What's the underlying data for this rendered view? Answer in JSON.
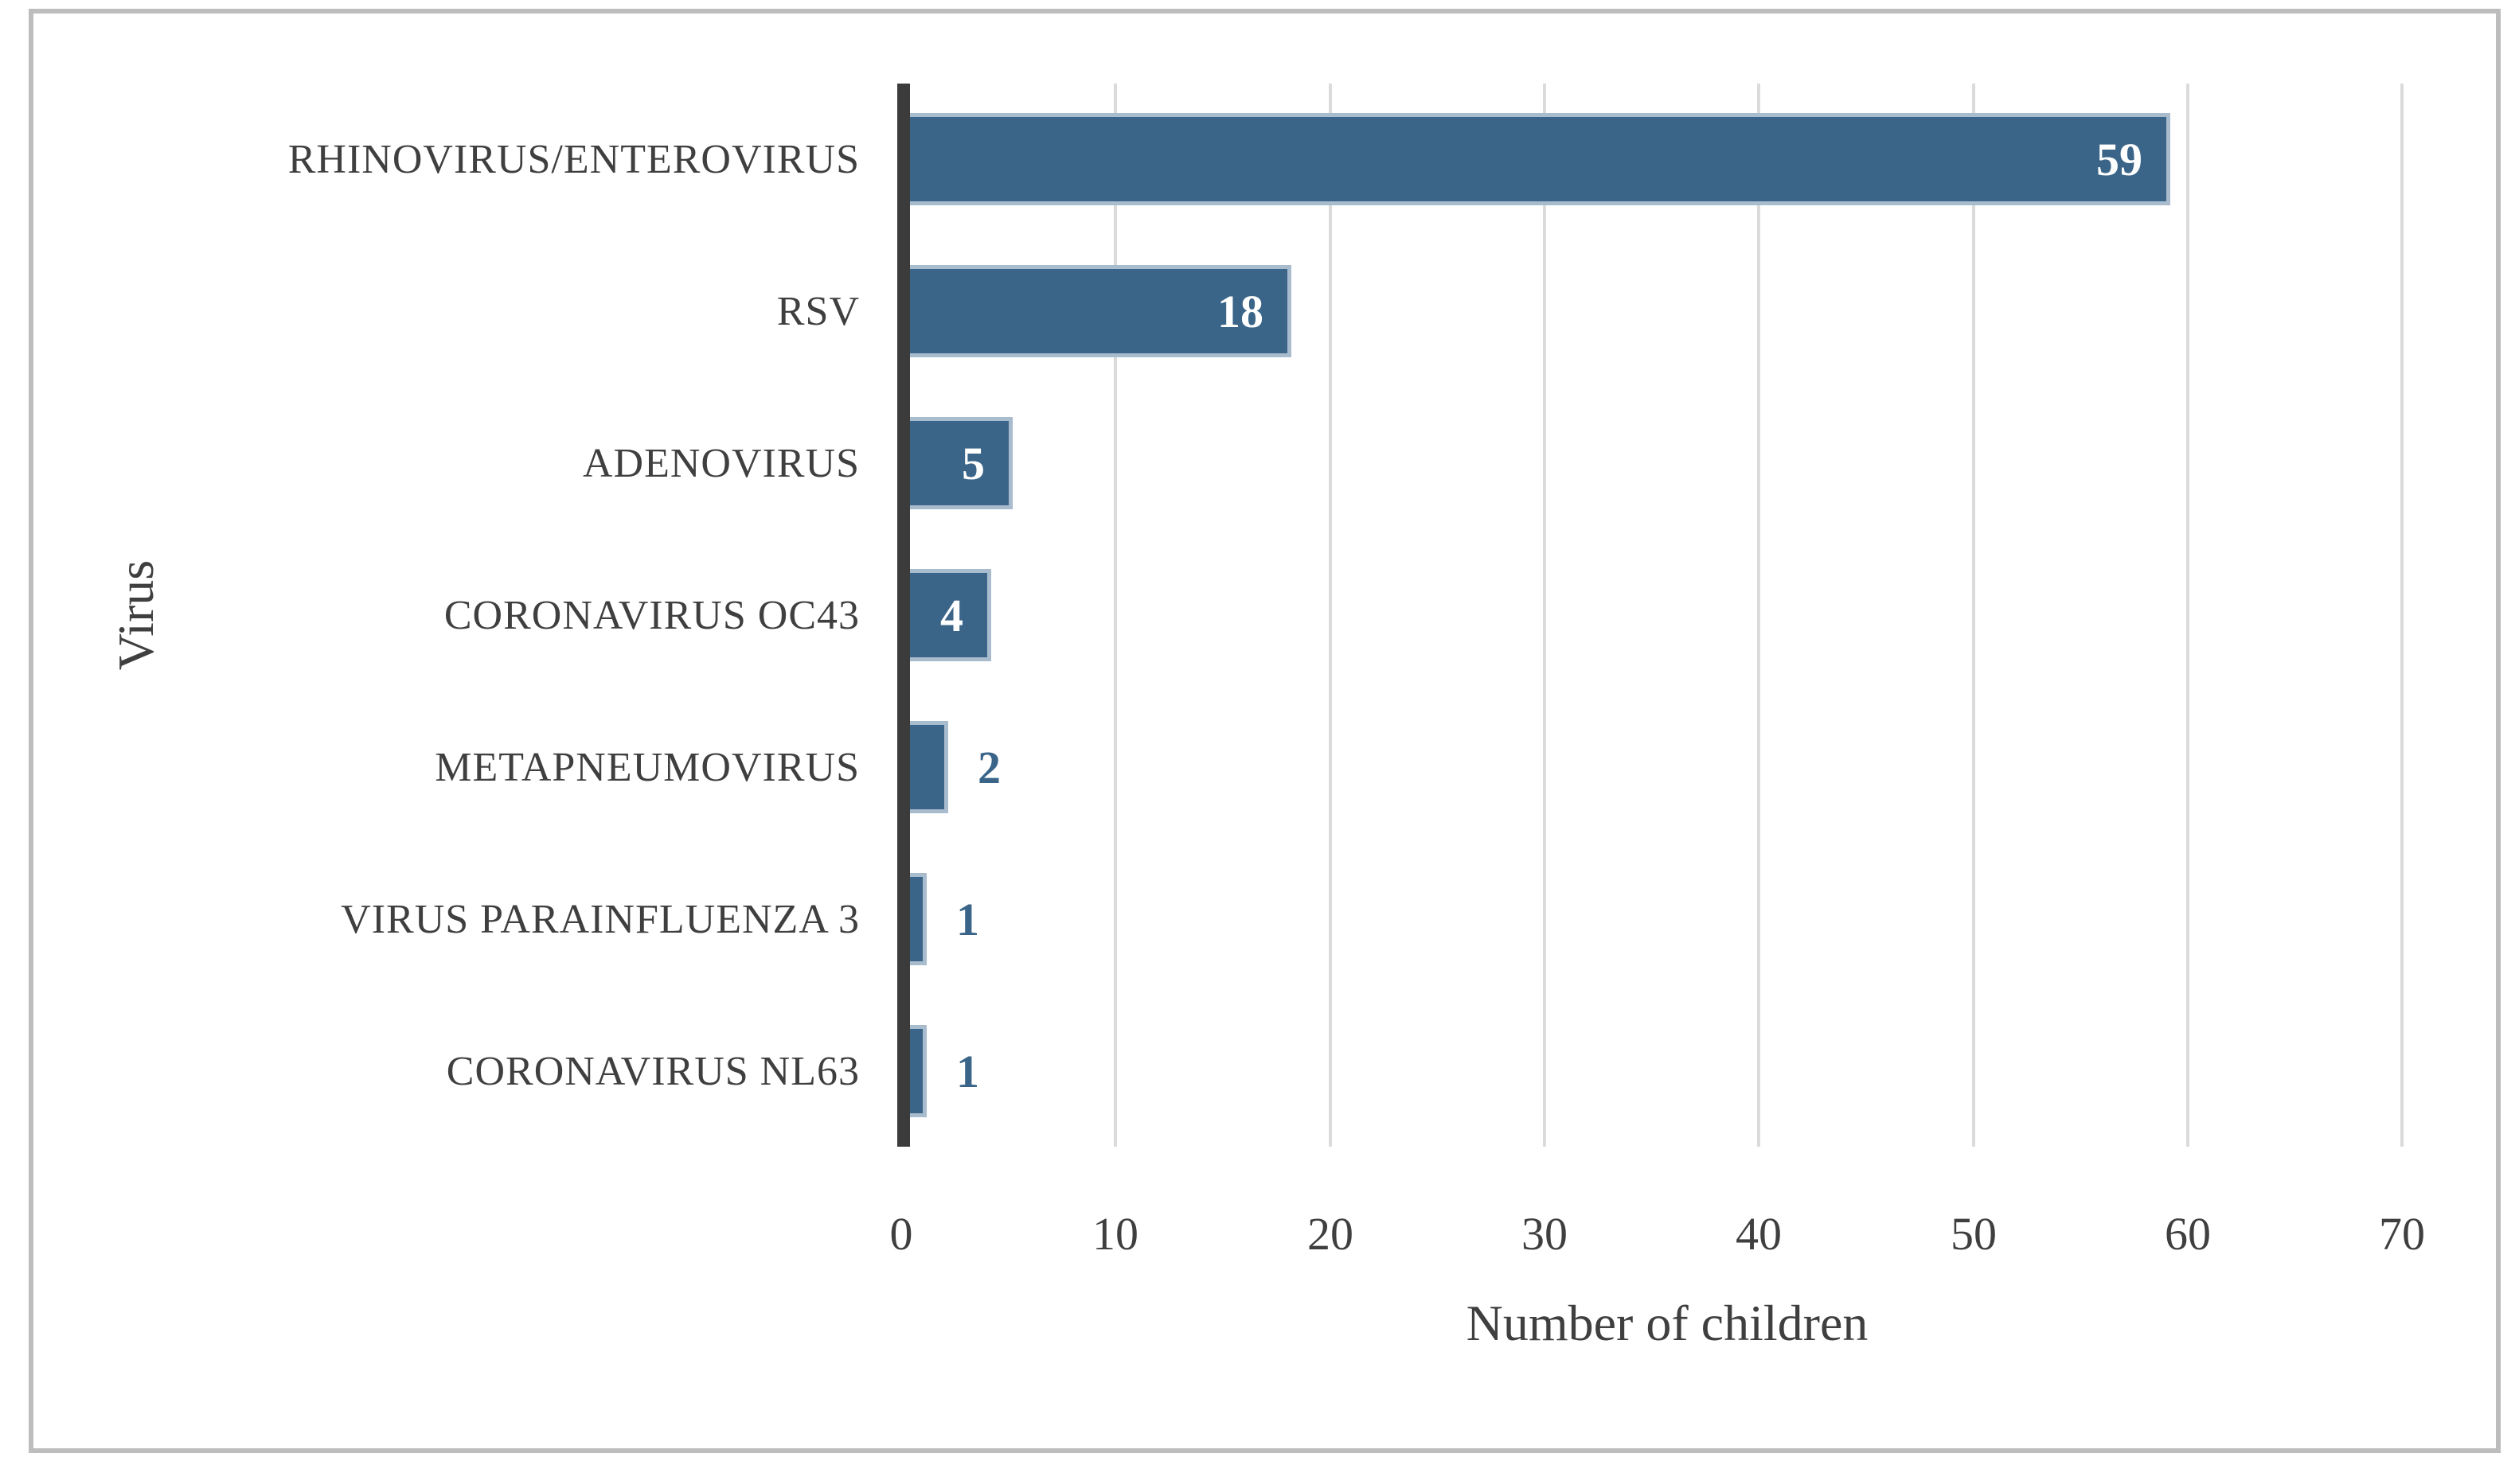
{
  "figure": {
    "background_color": "#FFFFFF",
    "border_color": "#BDBDBD"
  },
  "chart_data": {
    "type": "bar",
    "orientation": "horizontal",
    "title": "",
    "xlabel": "Number of children",
    "ylabel": "Virus",
    "categories": [
      "RHINOVIRUS/ENTEROVIRUS",
      "RSV",
      "ADENOVIRUS",
      "CORONAVIRUS OC43",
      "METAPNEUMOVIRUS",
      "VIRUS PARAINFLUENZA 3",
      "CORONAVIRUS NL63"
    ],
    "values": [
      59,
      18,
      5,
      4,
      2,
      1,
      1
    ],
    "data_labels": [
      "59",
      "18",
      "5",
      "4",
      "2",
      "1",
      "1"
    ],
    "xlim": [
      0,
      70
    ],
    "xticks": [
      0,
      10,
      20,
      30,
      40,
      50,
      60,
      70
    ],
    "grid": "vertical-on",
    "legend": "none",
    "bar_color": "#3A6589",
    "bar_border_color": "#A9BCCE",
    "axis_line_color": "#3B3B3B",
    "gridline_color": "#DBDBDB",
    "text_color": "#3F3F3F",
    "label_inside_color": "#FFFFFF",
    "label_outside_color": "#3A6589"
  }
}
